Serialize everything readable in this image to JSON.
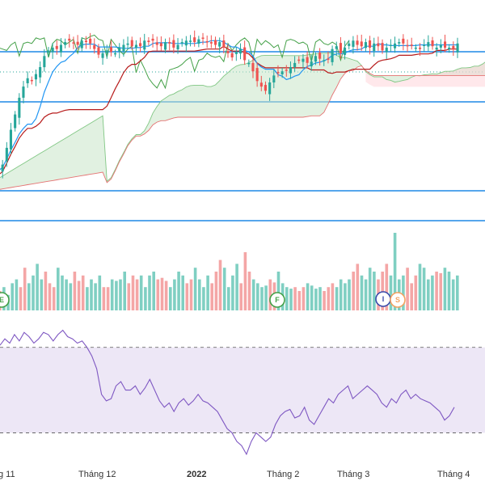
{
  "chart_data": {
    "type": "candlestick",
    "colors": {
      "up": "#26a69a",
      "down": "#ef5350",
      "volume_up": "#7fcfc2",
      "volume_down": "#f4a6a6",
      "tenkan": "#2196f3",
      "kijun": "#b71c1c",
      "chikou": "#43a047",
      "span_a": "#81c784",
      "span_b": "#e57373",
      "cloud_bull": "#c8e6c9",
      "cloud_bear": "#ffcdd2",
      "horizontal_line": "#1e88e5",
      "dotted_line": "#26a69a",
      "rsi_line": "#7e57c2",
      "rsi_band": "#ede7f6",
      "rsi_dash": "#555555"
    },
    "x_axis_labels": [
      {
        "label": "g 11",
        "bold": false
      },
      {
        "label": "Tháng 12",
        "bold": false
      },
      {
        "label": "2022",
        "bold": true
      },
      {
        "label": "Tháng 2",
        "bold": false
      },
      {
        "label": "Tháng 3",
        "bold": false
      },
      {
        "label": "Tháng 4",
        "bold": false
      }
    ],
    "event_markers": [
      {
        "letter": "E",
        "color": "#43a047"
      },
      {
        "letter": "F",
        "color": "#43a047"
      },
      {
        "letter": "I",
        "color": "#3949ab"
      },
      {
        "letter": "S",
        "color": "#f4a261"
      }
    ],
    "price_closes": [
      31.5,
      32.0,
      33.2,
      34.5,
      35.6,
      36.8,
      37.6,
      38.2,
      38.0,
      38.5,
      39.0,
      39.8,
      40.2,
      40.4,
      40.3,
      40.6,
      40.8,
      40.9,
      40.7,
      40.6,
      40.9,
      40.8,
      40.7,
      40.3,
      39.9,
      40.0,
      40.2,
      40.1,
      40.0,
      40.4,
      40.6,
      40.7,
      40.5,
      40.6,
      40.5,
      40.9,
      40.8,
      40.9,
      40.6,
      40.5,
      40.8,
      40.7,
      40.4,
      40.6,
      40.8,
      40.9,
      40.9,
      40.8,
      41.0,
      41.1,
      40.8,
      40.7,
      40.6,
      40.8,
      40.4,
      40.0,
      39.7,
      40.1,
      40.3,
      39.5,
      39.3,
      38.7,
      38.0,
      37.6,
      37.3,
      37.9,
      38.4,
      38.6,
      38.7,
      38.8,
      39.0,
      39.3,
      39.5,
      39.6,
      39.3,
      39.4,
      39.8,
      39.6,
      39.5,
      39.6,
      40.3,
      40.5,
      40.0,
      40.4,
      40.7,
      40.9,
      40.6,
      40.5,
      40.8,
      40.4,
      40.7,
      40.5,
      40.2,
      40.4,
      40.6,
      40.7,
      40.8,
      40.7,
      40.5,
      40.6,
      40.4,
      40.3,
      40.6,
      40.8,
      40.5,
      40.4,
      40.6,
      40.4,
      40.4,
      40.3,
      40.7
    ],
    "volume": [
      0.25,
      0.3,
      0.2,
      0.35,
      0.4,
      0.3,
      0.55,
      0.35,
      0.45,
      0.6,
      0.4,
      0.5,
      0.35,
      0.3,
      0.55,
      0.45,
      0.4,
      0.35,
      0.5,
      0.38,
      0.45,
      0.3,
      0.4,
      0.35,
      0.45,
      0.3,
      0.3,
      0.4,
      0.38,
      0.4,
      0.5,
      0.35,
      0.45,
      0.4,
      0.45,
      0.3,
      0.45,
      0.5,
      0.4,
      0.42,
      0.38,
      0.3,
      0.4,
      0.5,
      0.45,
      0.35,
      0.4,
      0.55,
      0.4,
      0.3,
      0.45,
      0.35,
      0.5,
      0.65,
      0.55,
      0.3,
      0.45,
      0.6,
      0.35,
      0.75,
      0.5,
      0.4,
      0.35,
      0.3,
      0.32,
      0.4,
      0.36,
      0.5,
      0.35,
      0.3,
      0.28,
      0.3,
      0.25,
      0.3,
      0.35,
      0.32,
      0.28,
      0.3,
      0.25,
      0.3,
      0.35,
      0.3,
      0.4,
      0.35,
      0.4,
      0.5,
      0.6,
      0.45,
      0.4,
      0.55,
      0.5,
      0.4,
      0.5,
      0.6,
      0.45,
      1.0,
      0.4,
      0.45,
      0.55,
      0.35,
      0.45,
      0.6,
      0.55,
      0.4,
      0.45,
      0.5,
      0.48,
      0.55,
      0.5,
      0.4,
      0.45
    ],
    "rsi": [
      71,
      74,
      72,
      76,
      73,
      77,
      75,
      72,
      74,
      77,
      76,
      73,
      76,
      78,
      75,
      74,
      72,
      73,
      70,
      66,
      60,
      48,
      45,
      46,
      52,
      54,
      50,
      50,
      52,
      48,
      51,
      55,
      50,
      45,
      42,
      44,
      40,
      44,
      46,
      43,
      45,
      48,
      45,
      44,
      42,
      40,
      36,
      32,
      30,
      26,
      24,
      20,
      26,
      30,
      28,
      26,
      28,
      34,
      38,
      40,
      41,
      37,
      38,
      42,
      36,
      34,
      38,
      42,
      46,
      44,
      48,
      50,
      52,
      46,
      48,
      50,
      52,
      50,
      48,
      44,
      42,
      46,
      44,
      48,
      50,
      46,
      48,
      46,
      45,
      44,
      42,
      40,
      36,
      38,
      42
    ],
    "rsi_levels": [
      70,
      30
    ],
    "rsi_ylim": [
      20,
      82
    ]
  }
}
